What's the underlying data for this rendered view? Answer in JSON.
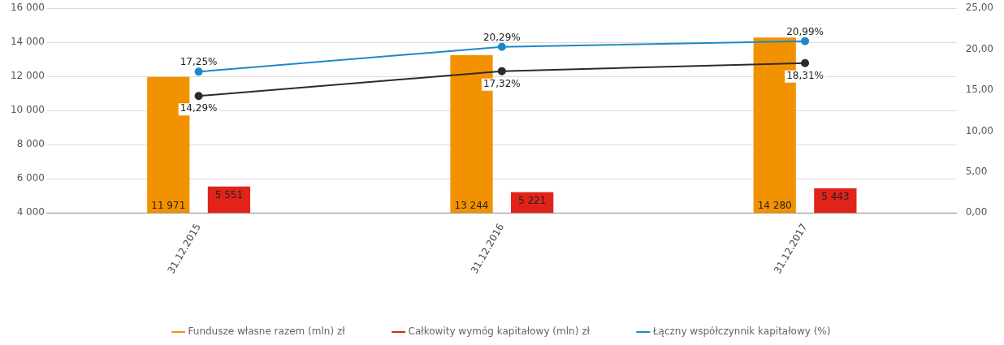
{
  "chart_data": {
    "type": "bar",
    "categories": [
      "31.12.2015",
      "31.12.2016",
      "31.12.2017"
    ],
    "series": [
      {
        "name": "Fundusze własne razem (mln) zł",
        "color": "#f39200",
        "values": [
          11971,
          13244,
          14280
        ],
        "value_labels": [
          "11 971",
          "13 244",
          "14 280"
        ]
      },
      {
        "name": "Całkowity wymóg kapitałowy (mln) zł",
        "color": "#e2231a",
        "values": [
          5551,
          5221,
          5443
        ],
        "value_labels": [
          "5 551",
          "5 221",
          "5 443"
        ]
      },
      {
        "name": "Łączny współczynnik kapitałowy (%)",
        "type": "line",
        "axis": "y2",
        "color": "#1e88c8",
        "values": [
          17.25,
          20.29,
          20.99
        ],
        "value_labels": [
          "17,25%",
          "20,29%",
          "20,99%"
        ]
      },
      {
        "type": "line",
        "axis": "y2",
        "color": "#2b2b2b",
        "values": [
          14.29,
          17.32,
          18.31
        ],
        "value_labels": [
          "14,29%",
          "17,32%",
          "18,31%"
        ]
      }
    ],
    "ylim": [
      4000,
      16000
    ],
    "yticks": [
      {
        "value": 4000,
        "label": "4 000"
      },
      {
        "value": 6000,
        "label": "6 000"
      },
      {
        "value": 8000,
        "label": "8 000"
      },
      {
        "value": 10000,
        "label": "10 000"
      },
      {
        "value": 12000,
        "label": "12 000"
      },
      {
        "value": 14000,
        "label": "14 000"
      },
      {
        "value": 16000,
        "label": "16 000"
      }
    ],
    "y2lim": [
      0,
      25
    ],
    "y2ticks": [
      {
        "value": 0,
        "label": "0,00"
      },
      {
        "value": 5,
        "label": "5,00"
      },
      {
        "value": 10,
        "label": "10,00"
      },
      {
        "value": 15,
        "label": "15,00"
      },
      {
        "value": 20,
        "label": "20,00"
      },
      {
        "value": 25,
        "label": "25,00"
      }
    ],
    "grid": "y",
    "legend": "bottom",
    "marker": "circle"
  }
}
